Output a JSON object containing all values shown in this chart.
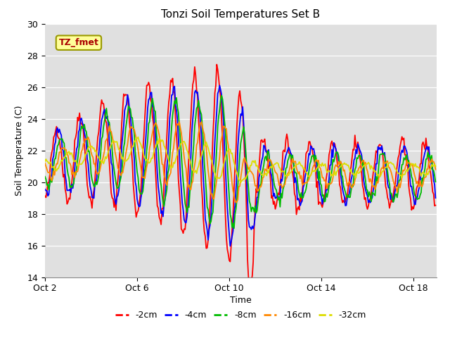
{
  "title": "Tonzi Soil Temperatures Set B",
  "xlabel": "Time",
  "ylabel": "Soil Temperature (C)",
  "ylim": [
    14,
    30
  ],
  "xlim": [
    0,
    408
  ],
  "xtick_positions": [
    0,
    96,
    192,
    288,
    384
  ],
  "xtick_labels": [
    "Oct 2",
    "Oct 6",
    "Oct 10",
    "Oct 14",
    "Oct 18"
  ],
  "ytick_positions": [
    14,
    16,
    18,
    20,
    22,
    24,
    26,
    28,
    30
  ],
  "bg_color": "#e0e0e0",
  "grid_color": "#ffffff",
  "legend_labels": [
    "-2cm",
    "-4cm",
    "-8cm",
    "-16cm",
    "-32cm"
  ],
  "legend_colors": [
    "#ff0000",
    "#0000ff",
    "#00bb00",
    "#ff8800",
    "#dddd00"
  ],
  "annotation_text": "TZ_fmet",
  "annotation_fg": "#aa0000",
  "annotation_bg": "#ffff99",
  "annotation_border": "#999900"
}
